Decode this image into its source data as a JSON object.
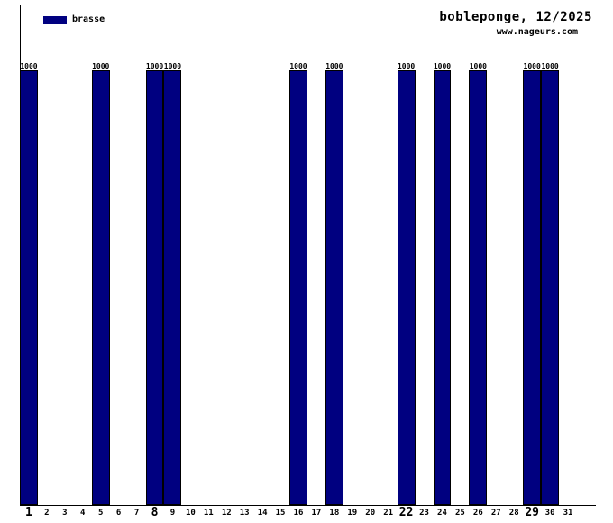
{
  "header": {
    "title": "bobleponge, 12/2025",
    "subtitle": "www.nageurs.com"
  },
  "legend": {
    "label": "brasse",
    "color": "#000080"
  },
  "chart_data": {
    "type": "bar",
    "title": "bobleponge, 12/2025",
    "subtitle": "www.nageurs.com",
    "xlabel": "",
    "ylabel": "",
    "categories": [
      1,
      2,
      3,
      4,
      5,
      6,
      7,
      8,
      9,
      10,
      11,
      12,
      13,
      14,
      15,
      16,
      17,
      18,
      19,
      20,
      21,
      22,
      23,
      24,
      25,
      26,
      27,
      28,
      29,
      30,
      31
    ],
    "series": [
      {
        "name": "brasse",
        "color": "#000080",
        "values": [
          1000,
          null,
          null,
          null,
          1000,
          null,
          null,
          1000,
          1000,
          null,
          null,
          null,
          null,
          null,
          null,
          1000,
          null,
          1000,
          null,
          null,
          null,
          1000,
          null,
          1000,
          null,
          1000,
          null,
          null,
          1000,
          1000,
          null
        ]
      }
    ],
    "bold_categories": [
      1,
      8,
      22,
      29
    ],
    "bar_value_labels_shown": true,
    "ylim": [
      0,
      1150
    ],
    "grid": false,
    "legend_position": "top-left",
    "axis_color": "#000000",
    "background_color": "#ffffff"
  }
}
